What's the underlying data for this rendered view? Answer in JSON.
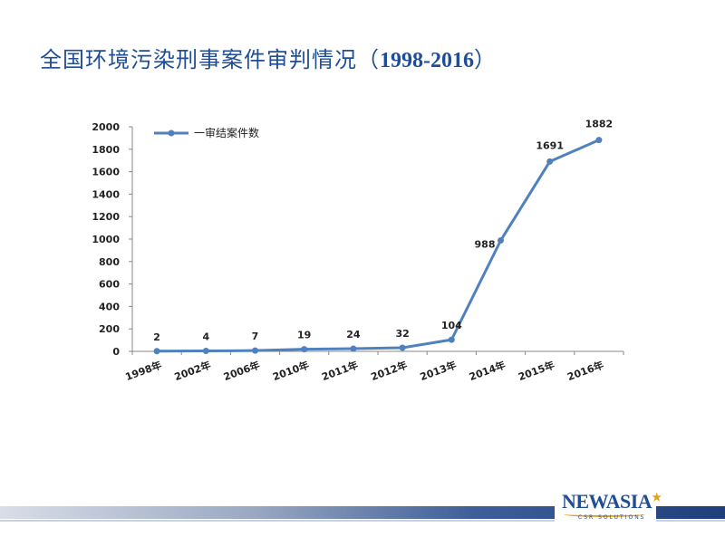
{
  "slide": {
    "title_cn": "全国环境污染刑事案件审判情况（",
    "title_years": "1998-2016",
    "title_end": "）"
  },
  "logo": {
    "main": "NEWASIA",
    "star": "★",
    "sub": "CSR SOLUTIONS"
  },
  "colors": {
    "series": "#4f81bd",
    "title": "#1f4e96",
    "axis": "#888888",
    "footer_dark": "#1f3f7a"
  },
  "chart_data": {
    "type": "line",
    "title": "",
    "xlabel": "",
    "ylabel": "",
    "ylim": [
      0,
      2000
    ],
    "yticks": [
      0,
      200,
      400,
      600,
      800,
      1000,
      1200,
      1400,
      1600,
      1800,
      2000
    ],
    "categories": [
      "1998年",
      "2002年",
      "2006年",
      "2010年",
      "2011年",
      "2012年",
      "2013年",
      "2014年",
      "2015年",
      "2016年"
    ],
    "series": [
      {
        "name": "一审结案件数",
        "values": [
          2,
          4,
          7,
          19,
          24,
          32,
          104,
          988,
          1691,
          1882
        ],
        "data_labels": [
          "2",
          "4",
          "7",
          "19",
          "24",
          "32",
          "104",
          "988",
          "1691",
          "1882"
        ]
      }
    ],
    "legend": "top-left",
    "grid": false,
    "markers": true
  }
}
